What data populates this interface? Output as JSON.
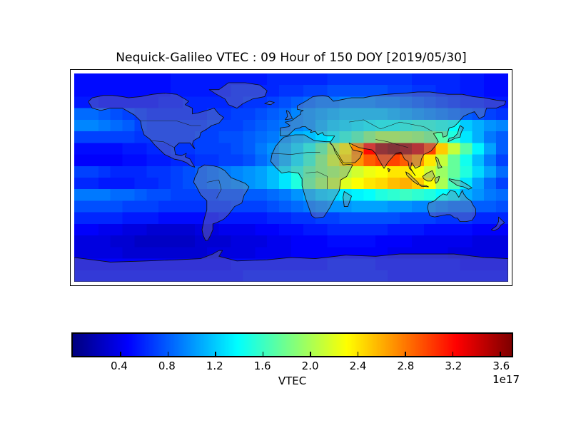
{
  "title": "Nequick-Galileo VTEC : 09 Hour of 150 DOY [2019/05/30]",
  "colors": {
    "background": "#ffffff",
    "frame": "#000000",
    "colormap_low": "#00007f",
    "colormap_high": "#7f0000"
  },
  "colorbar": {
    "label": "VTEC",
    "offset_label": "1e17",
    "ticks": [
      0.4,
      0.8,
      1.2,
      1.6,
      2.0,
      2.4,
      2.8,
      3.2,
      3.6
    ],
    "tick_labels": [
      "0.4",
      "0.8",
      "1.2",
      "1.6",
      "2.0",
      "2.4",
      "2.8",
      "3.2",
      "3.6"
    ],
    "vmin": 0.0,
    "vmax": 3.7,
    "colormap": "jet",
    "orientation": "horizontal"
  },
  "chart_data": {
    "type": "heatmap",
    "title": "Nequick-Galileo VTEC : 09 Hour of 150 DOY [2019/05/30]",
    "projection": "equirectangular world map with coastlines",
    "colormap": "jet",
    "units": "VTEC (1e17)",
    "vmin": 0.0,
    "vmax": 3.7,
    "lon_range": [
      -180,
      180
    ],
    "lat_range": [
      -90,
      90
    ],
    "cell_size_deg": 10,
    "lon_centers": [
      -175,
      -165,
      -155,
      -145,
      -135,
      -125,
      -115,
      -105,
      -95,
      -85,
      -75,
      -65,
      -55,
      -45,
      -35,
      -25,
      -15,
      -5,
      5,
      15,
      25,
      35,
      45,
      55,
      65,
      75,
      85,
      95,
      105,
      115,
      125,
      135,
      145,
      155,
      165,
      175
    ],
    "lat_centers": [
      85,
      75,
      65,
      55,
      45,
      35,
      25,
      15,
      5,
      -5,
      -15,
      -25,
      -35,
      -45,
      -55,
      -65,
      -75,
      -85
    ],
    "grid_note": "values in 1e17 el/m^2, rows north to south",
    "grid": [
      [
        0.5,
        0.5,
        0.5,
        0.5,
        0.5,
        0.5,
        0.5,
        0.5,
        0.55,
        0.55,
        0.55,
        0.55,
        0.55,
        0.55,
        0.55,
        0.55,
        0.6,
        0.6,
        0.6,
        0.6,
        0.6,
        0.65,
        0.65,
        0.65,
        0.65,
        0.65,
        0.65,
        0.65,
        0.6,
        0.6,
        0.6,
        0.6,
        0.55,
        0.55,
        0.5,
        0.5
      ],
      [
        0.5,
        0.5,
        0.5,
        0.5,
        0.5,
        0.5,
        0.5,
        0.5,
        0.55,
        0.55,
        0.55,
        0.55,
        0.55,
        0.6,
        0.6,
        0.6,
        0.6,
        0.65,
        0.65,
        0.7,
        0.7,
        0.75,
        0.75,
        0.75,
        0.75,
        0.75,
        0.7,
        0.7,
        0.65,
        0.65,
        0.6,
        0.6,
        0.55,
        0.55,
        0.5,
        0.5
      ],
      [
        0.55,
        0.55,
        0.5,
        0.5,
        0.5,
        0.5,
        0.5,
        0.55,
        0.55,
        0.6,
        0.6,
        0.6,
        0.6,
        0.6,
        0.65,
        0.65,
        0.7,
        0.75,
        0.8,
        0.85,
        0.9,
        0.9,
        0.95,
        0.95,
        0.95,
        0.9,
        0.9,
        0.85,
        0.8,
        0.75,
        0.7,
        0.65,
        0.6,
        0.6,
        0.55,
        0.55
      ],
      [
        0.85,
        0.85,
        0.8,
        0.75,
        0.7,
        0.65,
        0.6,
        0.6,
        0.6,
        0.6,
        0.6,
        0.65,
        0.65,
        0.7,
        0.7,
        0.75,
        0.8,
        0.85,
        0.95,
        1.0,
        1.05,
        1.1,
        1.15,
        1.15,
        1.15,
        1.15,
        1.1,
        1.05,
        1.0,
        0.95,
        0.9,
        0.85,
        0.8,
        0.75,
        0.7,
        0.65
      ],
      [
        0.95,
        0.95,
        0.9,
        0.85,
        0.8,
        0.7,
        0.65,
        0.65,
        0.65,
        0.65,
        0.65,
        0.7,
        0.7,
        0.7,
        0.75,
        0.8,
        0.85,
        0.9,
        0.95,
        1.0,
        1.1,
        1.2,
        1.25,
        1.3,
        1.35,
        1.4,
        1.4,
        1.45,
        1.5,
        1.5,
        1.45,
        1.4,
        1.2,
        1.1,
        1.0,
        0.95
      ],
      [
        0.7,
        0.7,
        0.7,
        0.7,
        0.7,
        0.65,
        0.65,
        0.65,
        0.65,
        0.65,
        0.7,
        0.7,
        0.75,
        0.75,
        0.8,
        0.85,
        0.9,
        1.0,
        1.1,
        1.15,
        1.25,
        1.35,
        1.5,
        1.65,
        1.85,
        2.0,
        2.0,
        1.95,
        1.9,
        1.8,
        1.7,
        1.5,
        1.3,
        1.1,
        0.9,
        0.8
      ],
      [
        0.5,
        0.5,
        0.5,
        0.5,
        0.55,
        0.55,
        0.6,
        0.6,
        0.65,
        0.65,
        0.7,
        0.7,
        0.7,
        0.75,
        0.8,
        0.9,
        1.0,
        1.1,
        1.25,
        1.45,
        1.7,
        2.05,
        2.35,
        2.75,
        3.2,
        3.6,
        3.7,
        3.6,
        3.4,
        3.0,
        2.5,
        2.1,
        1.7,
        1.35,
        1.05,
        0.8
      ],
      [
        0.45,
        0.45,
        0.45,
        0.45,
        0.5,
        0.5,
        0.55,
        0.55,
        0.6,
        0.6,
        0.65,
        0.65,
        0.7,
        0.7,
        0.75,
        0.85,
        0.95,
        1.1,
        1.3,
        1.55,
        1.85,
        2.15,
        2.45,
        2.7,
        2.9,
        3.0,
        3.0,
        2.9,
        2.7,
        2.4,
        2.1,
        1.75,
        1.45,
        1.15,
        0.9,
        0.7
      ],
      [
        0.7,
        0.7,
        0.65,
        0.6,
        0.6,
        0.6,
        0.65,
        0.65,
        0.7,
        0.75,
        0.8,
        0.85,
        0.9,
        0.95,
        1.0,
        1.05,
        1.15,
        1.3,
        1.5,
        1.7,
        1.85,
        1.95,
        2.05,
        2.15,
        2.25,
        2.3,
        2.4,
        2.4,
        2.3,
        2.15,
        1.95,
        1.75,
        1.5,
        1.25,
        1.05,
        0.85
      ],
      [
        0.6,
        0.6,
        0.55,
        0.55,
        0.55,
        0.6,
        0.6,
        0.65,
        0.7,
        0.75,
        0.8,
        0.85,
        0.9,
        0.95,
        1.0,
        1.05,
        1.15,
        1.3,
        1.5,
        1.75,
        1.95,
        2.1,
        2.2,
        2.3,
        2.4,
        2.45,
        2.55,
        2.6,
        2.5,
        2.3,
        2.0,
        1.65,
        1.3,
        1.05,
        0.85,
        0.7
      ],
      [
        0.9,
        0.9,
        0.9,
        0.85,
        0.85,
        0.8,
        0.75,
        0.75,
        0.7,
        0.7,
        0.7,
        0.7,
        0.75,
        0.75,
        0.8,
        0.8,
        0.85,
        0.9,
        1.0,
        1.1,
        1.2,
        1.25,
        1.3,
        1.35,
        1.4,
        1.5,
        1.55,
        1.6,
        1.55,
        1.5,
        1.4,
        1.3,
        1.1,
        1.0,
        0.9,
        0.85
      ],
      [
        0.75,
        0.75,
        0.75,
        0.75,
        0.7,
        0.7,
        0.7,
        0.65,
        0.65,
        0.65,
        0.65,
        0.65,
        0.65,
        0.7,
        0.7,
        0.7,
        0.75,
        0.8,
        0.85,
        0.9,
        0.95,
        1.0,
        1.0,
        1.05,
        1.05,
        1.05,
        1.0,
        1.0,
        0.95,
        0.95,
        0.9,
        0.85,
        0.85,
        0.8,
        0.8,
        0.75
      ],
      [
        0.6,
        0.6,
        0.6,
        0.6,
        0.55,
        0.55,
        0.55,
        0.5,
        0.5,
        0.5,
        0.5,
        0.5,
        0.55,
        0.55,
        0.55,
        0.55,
        0.6,
        0.6,
        0.65,
        0.65,
        0.7,
        0.7,
        0.75,
        0.75,
        0.75,
        0.75,
        0.75,
        0.7,
        0.7,
        0.7,
        0.65,
        0.65,
        0.65,
        0.6,
        0.6,
        0.6
      ],
      [
        0.45,
        0.45,
        0.4,
        0.4,
        0.35,
        0.35,
        0.3,
        0.3,
        0.3,
        0.3,
        0.35,
        0.35,
        0.4,
        0.4,
        0.4,
        0.45,
        0.45,
        0.5,
        0.5,
        0.55,
        0.55,
        0.6,
        0.6,
        0.6,
        0.6,
        0.6,
        0.55,
        0.55,
        0.55,
        0.5,
        0.5,
        0.5,
        0.5,
        0.45,
        0.45,
        0.45
      ],
      [
        0.35,
        0.35,
        0.35,
        0.3,
        0.3,
        0.25,
        0.25,
        0.25,
        0.25,
        0.25,
        0.3,
        0.3,
        0.3,
        0.35,
        0.35,
        0.35,
        0.4,
        0.4,
        0.45,
        0.45,
        0.45,
        0.5,
        0.5,
        0.5,
        0.5,
        0.45,
        0.45,
        0.45,
        0.4,
        0.4,
        0.4,
        0.4,
        0.4,
        0.35,
        0.35,
        0.35
      ],
      [
        0.35,
        0.35,
        0.35,
        0.35,
        0.3,
        0.3,
        0.3,
        0.3,
        0.3,
        0.3,
        0.3,
        0.35,
        0.35,
        0.35,
        0.35,
        0.4,
        0.4,
        0.4,
        0.45,
        0.45,
        0.45,
        0.45,
        0.45,
        0.45,
        0.45,
        0.45,
        0.4,
        0.4,
        0.4,
        0.4,
        0.4,
        0.35,
        0.35,
        0.35,
        0.35,
        0.35
      ],
      [
        0.45,
        0.45,
        0.45,
        0.45,
        0.45,
        0.45,
        0.45,
        0.45,
        0.45,
        0.45,
        0.45,
        0.45,
        0.45,
        0.5,
        0.5,
        0.5,
        0.5,
        0.5,
        0.5,
        0.5,
        0.5,
        0.55,
        0.55,
        0.55,
        0.55,
        0.5,
        0.5,
        0.5,
        0.5,
        0.5,
        0.5,
        0.5,
        0.45,
        0.45,
        0.45,
        0.45
      ],
      [
        0.5,
        0.5,
        0.5,
        0.5,
        0.5,
        0.5,
        0.5,
        0.5,
        0.5,
        0.5,
        0.5,
        0.5,
        0.5,
        0.5,
        0.55,
        0.55,
        0.55,
        0.55,
        0.55,
        0.55,
        0.55,
        0.55,
        0.55,
        0.55,
        0.55,
        0.55,
        0.5,
        0.5,
        0.5,
        0.5,
        0.5,
        0.5,
        0.5,
        0.5,
        0.5,
        0.5
      ]
    ]
  }
}
